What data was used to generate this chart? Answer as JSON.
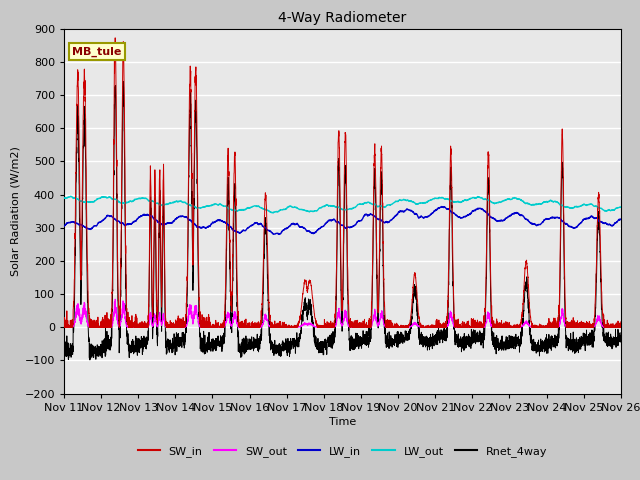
{
  "title": "4-Way Radiometer",
  "xlabel": "Time",
  "ylabel": "Solar Radiation (W/m2)",
  "ylim": [
    -200,
    900
  ],
  "yticks": [
    -200,
    -100,
    0,
    100,
    200,
    300,
    400,
    500,
    600,
    700,
    800,
    900
  ],
  "xtick_labels": [
    "Nov 11",
    "Nov 12",
    "Nov 13",
    "Nov 14",
    "Nov 15",
    "Nov 16",
    "Nov 17",
    "Nov 18",
    "Nov 19",
    "Nov 20",
    "Nov 21",
    "Nov 22",
    "Nov 23",
    "Nov 24",
    "Nov 25",
    "Nov 26"
  ],
  "station_label": "MB_tule",
  "station_label_color": "#8B0000",
  "station_box_facecolor": "#FFFFCC",
  "station_box_edgecolor": "#999900",
  "fig_facecolor": "#C8C8C8",
  "ax_facecolor": "#E8E8E8",
  "grid_color": "#FFFFFF",
  "SW_in_color": "#CC0000",
  "SW_out_color": "#FF00FF",
  "LW_in_color": "#0000CC",
  "LW_out_color": "#00CCCC",
  "Rnet_color": "#000000",
  "line_lw": 0.7
}
